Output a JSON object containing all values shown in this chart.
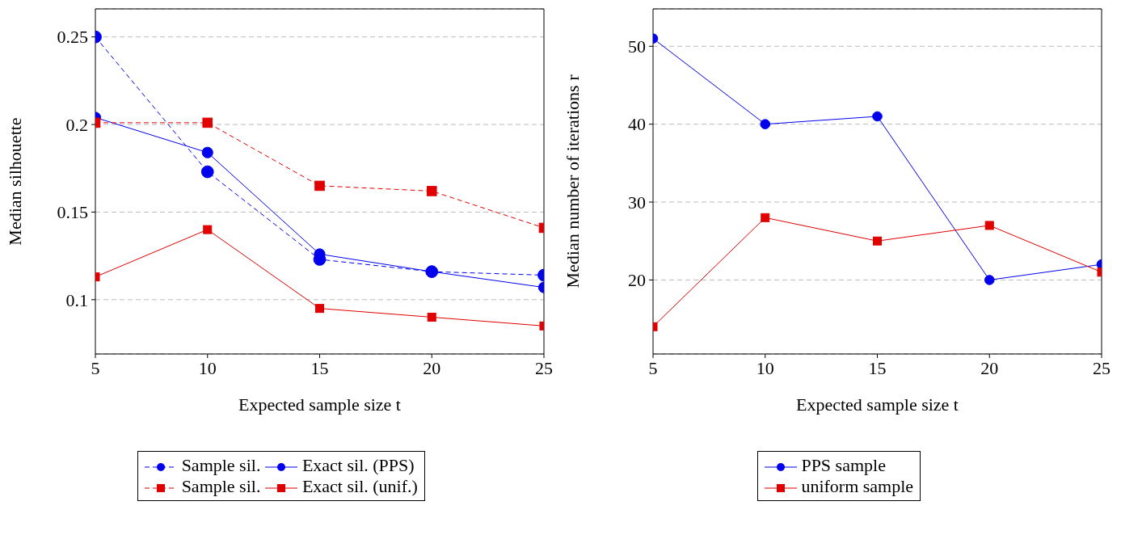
{
  "chart_data": [
    {
      "type": "line",
      "xlabel": "Expected sample size t",
      "ylabel": "Median silhouette",
      "x": [
        5,
        10,
        15,
        20,
        25
      ],
      "xlim": [
        5,
        25
      ],
      "xticks": [
        5,
        10,
        15,
        20,
        25
      ],
      "ylim": [
        0.069,
        0.266
      ],
      "yticks": [
        0.1,
        0.15,
        0.2,
        0.25
      ],
      "grid": "y",
      "legend": "bottom",
      "series": [
        {
          "name": "Sample sil.",
          "color": "#0000ee",
          "marker": "circle",
          "line_style": "dashed",
          "values": [
            0.25,
            0.173,
            0.123,
            0.116,
            0.114
          ]
        },
        {
          "name": "Exact sil. (PPS)",
          "color": "#0000ee",
          "marker": "circle",
          "line_style": "solid",
          "values": [
            0.204,
            0.184,
            0.126,
            0.116,
            0.107
          ]
        },
        {
          "name": "Sample sil.",
          "color": "#e00000",
          "marker": "square",
          "line_style": "dashed",
          "values": [
            0.201,
            0.201,
            0.165,
            0.162,
            0.141
          ]
        },
        {
          "name": "Exact sil. (unif.)",
          "color": "#e00000",
          "marker": "square",
          "line_style": "solid",
          "values": [
            0.113,
            0.14,
            0.095,
            0.09,
            0.085
          ]
        }
      ]
    },
    {
      "type": "line",
      "xlabel": "Expected sample size t",
      "ylabel": "Median number of iterations r",
      "x": [
        5,
        10,
        15,
        20,
        25
      ],
      "xlim": [
        5,
        25
      ],
      "xticks": [
        5,
        10,
        15,
        20,
        25
      ],
      "ylim": [
        10.5,
        54.8
      ],
      "yticks": [
        20,
        30,
        40,
        50
      ],
      "grid": "y",
      "legend": "bottom",
      "series": [
        {
          "name": "PPS sample",
          "color": "#0000ee",
          "marker": "circle",
          "line_style": "solid",
          "values": [
            51,
            40,
            41,
            20,
            22
          ]
        },
        {
          "name": "uniform sample",
          "color": "#e00000",
          "marker": "square",
          "line_style": "solid",
          "values": [
            14,
            28,
            25,
            27,
            21
          ]
        }
      ]
    }
  ]
}
